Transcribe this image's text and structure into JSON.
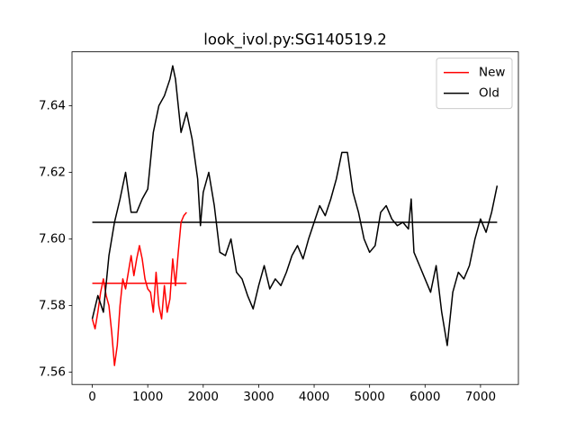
{
  "chart_data": {
    "type": "line",
    "title": "look_ivol.py:SG140519.2",
    "xlim": [
      -366,
      7683
    ],
    "ylim": [
      7.5563,
      7.6562
    ],
    "xticks": [
      0,
      1000,
      2000,
      3000,
      4000,
      5000,
      6000,
      7000
    ],
    "yticks": [
      7.56,
      7.58,
      {
        "value": 7.6,
        "label": "7.60"
      },
      7.62,
      7.64
    ],
    "legend": "upper right",
    "series": [
      {
        "name": "New",
        "color": "#ff0000",
        "x": [
          0,
          50,
          100,
          150,
          200,
          250,
          300,
          350,
          400,
          450,
          500,
          550,
          600,
          650,
          700,
          750,
          800,
          850,
          900,
          950,
          1000,
          1050,
          1100,
          1150,
          1200,
          1250,
          1300,
          1350,
          1400,
          1450,
          1500,
          1550,
          1600,
          1650,
          1700
        ],
        "values": [
          7.576,
          7.573,
          7.578,
          7.584,
          7.588,
          7.583,
          7.58,
          7.572,
          7.562,
          7.568,
          7.58,
          7.588,
          7.585,
          7.59,
          7.595,
          7.589,
          7.594,
          7.598,
          7.594,
          7.588,
          7.585,
          7.584,
          7.578,
          7.59,
          7.58,
          7.576,
          7.586,
          7.578,
          7.582,
          7.594,
          7.586,
          7.596,
          7.605,
          7.607,
          7.608
        ]
      },
      {
        "name": "Old",
        "color": "#000000",
        "x": [
          0,
          100,
          200,
          300,
          400,
          500,
          600,
          700,
          800,
          900,
          1000,
          1100,
          1200,
          1300,
          1400,
          1450,
          1500,
          1550,
          1600,
          1700,
          1800,
          1900,
          1950,
          2000,
          2100,
          2200,
          2300,
          2400,
          2500,
          2600,
          2700,
          2800,
          2900,
          3000,
          3100,
          3200,
          3300,
          3400,
          3500,
          3600,
          3700,
          3800,
          3900,
          4000,
          4100,
          4200,
          4300,
          4400,
          4500,
          4600,
          4700,
          4800,
          4900,
          5000,
          5100,
          5200,
          5300,
          5400,
          5500,
          5600,
          5700,
          5750,
          5800,
          5900,
          6000,
          6100,
          6200,
          6300,
          6400,
          6500,
          6600,
          6700,
          6800,
          6900,
          7000,
          7100,
          7200,
          7300
        ],
        "values": [
          7.576,
          7.583,
          7.578,
          7.595,
          7.605,
          7.612,
          7.62,
          7.608,
          7.608,
          7.612,
          7.615,
          7.632,
          7.64,
          7.643,
          7.648,
          7.652,
          7.648,
          7.64,
          7.632,
          7.638,
          7.63,
          7.618,
          7.604,
          7.614,
          7.62,
          7.61,
          7.596,
          7.595,
          7.6,
          7.59,
          7.588,
          7.583,
          7.579,
          7.586,
          7.592,
          7.585,
          7.588,
          7.586,
          7.59,
          7.595,
          7.598,
          7.594,
          7.6,
          7.605,
          7.61,
          7.607,
          7.612,
          7.618,
          7.626,
          7.626,
          7.614,
          7.608,
          7.6,
          7.596,
          7.598,
          7.608,
          7.61,
          7.606,
          7.604,
          7.605,
          7.603,
          7.612,
          7.596,
          7.592,
          7.588,
          7.584,
          7.592,
          7.578,
          7.568,
          7.584,
          7.59,
          7.588,
          7.592,
          7.6,
          7.606,
          7.602,
          7.608,
          7.616
        ]
      }
    ],
    "hlines": [
      {
        "y": 7.5867,
        "xmin": 0,
        "xmax": 1700,
        "color": "#ff0000"
      },
      {
        "y": 7.605,
        "xmin": 0,
        "xmax": 7300,
        "color": "#000000"
      }
    ]
  }
}
